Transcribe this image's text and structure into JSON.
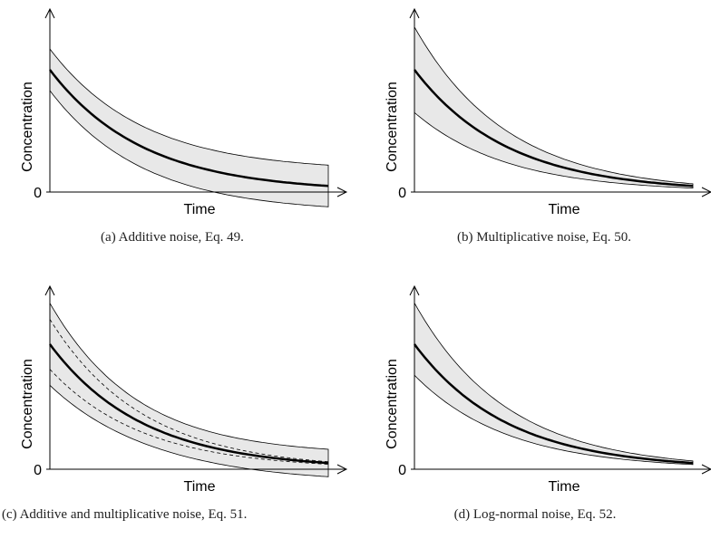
{
  "panels": [
    {
      "y_label": "Concentration",
      "x_label": "Time",
      "y_tick": "0",
      "caption": "(a) Additive noise, Eq. 49."
    },
    {
      "y_label": "Concentration",
      "x_label": "Time",
      "y_tick": "0",
      "caption": "(b) Multiplicative noise, Eq. 50."
    },
    {
      "y_label": "Concentration",
      "x_label": "Time",
      "y_tick": "0",
      "caption": "(c) Additive and multiplicative noise, Eq. 51."
    },
    {
      "y_label": "Concentration",
      "x_label": "Time",
      "y_tick": "0",
      "caption": "(d) Log-normal noise, Eq. 52."
    }
  ]
}
